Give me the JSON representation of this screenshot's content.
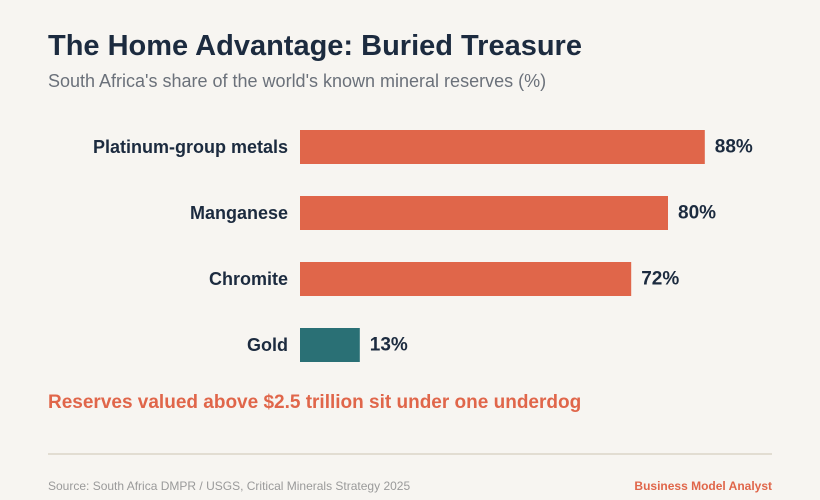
{
  "header": {
    "title": "The Home Advantage: Buried Treasure",
    "subtitle": "South Africa's share of the world's known mineral reserves (%)"
  },
  "chart_data": {
    "type": "bar",
    "orientation": "horizontal",
    "categories": [
      "Platinum-group metals",
      "Manganese",
      "Chromite",
      "Gold"
    ],
    "values": [
      88,
      80,
      72,
      13
    ],
    "value_suffix": "%",
    "title": "",
    "xlabel": "",
    "ylabel": "",
    "xlim": [
      0,
      100
    ],
    "grid": false,
    "bar_colors": [
      "#e0664a",
      "#e0664a",
      "#e0664a",
      "#2a7075"
    ]
  },
  "callout": "Reserves valued above $2.5 trillion sit under one underdog",
  "footer": {
    "source": "Source: South Africa DMPR / USGS, Critical Minerals Strategy 2025",
    "brand": "Business Model Analyst"
  }
}
